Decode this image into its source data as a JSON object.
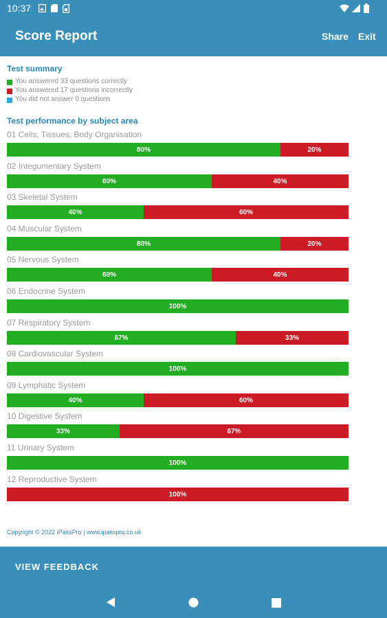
{
  "status_bar": {
    "time": "10:37"
  },
  "app_bar": {
    "title": "Score Report",
    "share_label": "Share",
    "exit_label": "Exit"
  },
  "summary": {
    "heading": "Test summary",
    "items": [
      {
        "text": "You answered 33 questions correctly",
        "color": "#22ad22"
      },
      {
        "text": "You answered 17 questions incorrectly",
        "color": "#cc1b26"
      },
      {
        "text": "You did not answer 0 questions",
        "color": "#29a9e1"
      }
    ]
  },
  "performance": {
    "heading": "Test performance by subject area",
    "subjects": [
      {
        "label": "01 Cells, Tissues, Body Organisation",
        "correct": 80,
        "incorrect": 20,
        "correct_label": "80%",
        "incorrect_label": "20%"
      },
      {
        "label": "02 Integumentary System",
        "correct": 60,
        "incorrect": 40,
        "correct_label": "60%",
        "incorrect_label": "40%"
      },
      {
        "label": "03 Skeletal System",
        "correct": 40,
        "incorrect": 60,
        "correct_label": "40%",
        "incorrect_label": "60%"
      },
      {
        "label": "04 Muscular System",
        "correct": 80,
        "incorrect": 20,
        "correct_label": "80%",
        "incorrect_label": "20%"
      },
      {
        "label": "05 Nervous System",
        "correct": 60,
        "incorrect": 40,
        "correct_label": "60%",
        "incorrect_label": "40%"
      },
      {
        "label": "06 Endocrine System",
        "correct": 100,
        "incorrect": 0,
        "correct_label": "100%",
        "incorrect_label": ""
      },
      {
        "label": "07 Respiratory System",
        "correct": 67,
        "incorrect": 33,
        "correct_label": "67%",
        "incorrect_label": "33%"
      },
      {
        "label": "08 Cardiovascular System",
        "correct": 100,
        "incorrect": 0,
        "correct_label": "100%",
        "incorrect_label": ""
      },
      {
        "label": "09 Lymphatic System",
        "correct": 40,
        "incorrect": 60,
        "correct_label": "40%",
        "incorrect_label": "60%"
      },
      {
        "label": "10 Digestive System",
        "correct": 33,
        "incorrect": 67,
        "correct_label": "33%",
        "incorrect_label": "67%"
      },
      {
        "label": "11 Urinary System",
        "correct": 100,
        "incorrect": 0,
        "correct_label": "100%",
        "incorrect_label": ""
      },
      {
        "label": "12 Reproductive System",
        "correct": 0,
        "incorrect": 100,
        "correct_label": "",
        "incorrect_label": "100%"
      }
    ]
  },
  "colors": {
    "correct": "#22ad22",
    "incorrect": "#cc1b26",
    "unanswered": "#29a9e1",
    "accent": "#3a8fba"
  },
  "copyright": "Copyright © 2022 iPassPro | www.ipasspro.co.uk",
  "footer": {
    "feedback_label": "VIEW FEEDBACK"
  },
  "icons": {
    "status_left": [
      "image-icon",
      "sd-card-icon",
      "sim-card-icon"
    ],
    "status_right": [
      "wifi-icon",
      "signal-icon",
      "battery-icon"
    ],
    "nav": [
      "back-icon",
      "home-icon",
      "recents-icon"
    ]
  }
}
